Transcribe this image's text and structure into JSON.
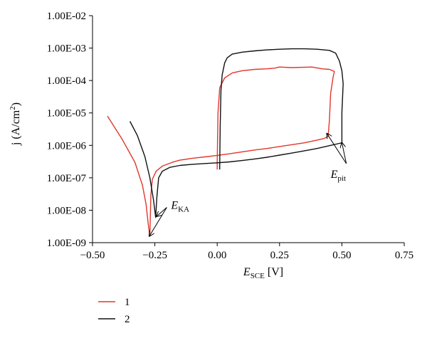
{
  "chart_data": {
    "type": "line",
    "title": "",
    "xlabel": {
      "main": "E",
      "sub": "SCE",
      "unit": " [V]"
    },
    "ylabel": {
      "text": "j (A/cm",
      "sup": "2",
      "close": ")"
    },
    "x_ticks": [
      -0.5,
      -0.25,
      0,
      0.25,
      0.5,
      0.75
    ],
    "x_tick_labels": [
      "−0.50",
      "−0.25",
      "0.00",
      "0.25",
      "0.50",
      "0.75"
    ],
    "xlim": [
      -0.5,
      0.75
    ],
    "y_scale": "log",
    "ylim": [
      1e-09,
      0.01
    ],
    "y_ticks": [
      1e-09,
      1e-08,
      1e-07,
      1e-06,
      1e-05,
      0.0001,
      0.001,
      0.01
    ],
    "y_tick_labels": [
      "1.00E-09",
      "1.00E-08",
      "1.00E-07",
      "1.00E-06",
      "1.00E-05",
      "1.00E-04",
      "1.00E-03",
      "1.00E-02"
    ],
    "grid": false,
    "legend_position": "bottom-left",
    "series": [
      {
        "name": "1",
        "color": "#e0372b",
        "points": [
          [
            -0.44,
            8e-06
          ],
          [
            -0.38,
            1.5e-06
          ],
          [
            -0.33,
            3e-07
          ],
          [
            -0.3,
            6e-08
          ],
          [
            -0.285,
            1.5e-08
          ],
          [
            -0.275,
            3e-09
          ],
          [
            -0.27,
            1.7e-09
          ],
          [
            -0.266,
            3e-08
          ],
          [
            -0.26,
            9e-08
          ],
          [
            -0.245,
            1.6e-07
          ],
          [
            -0.22,
            2.3e-07
          ],
          [
            -0.18,
            3e-07
          ],
          [
            -0.15,
            3.5e-07
          ],
          [
            -0.1,
            4e-07
          ],
          [
            -0.05,
            4.4e-07
          ],
          [
            0.0,
            4.9e-07
          ],
          [
            0.05,
            5.5e-07
          ],
          [
            0.1,
            6.3e-07
          ],
          [
            0.15,
            7.2e-07
          ],
          [
            0.2,
            8e-07
          ],
          [
            0.25,
            9.2e-07
          ],
          [
            0.3,
            1.05e-06
          ],
          [
            0.35,
            1.2e-06
          ],
          [
            0.4,
            1.45e-06
          ],
          [
            0.43,
            1.65e-06
          ],
          [
            0.445,
            1.9e-06
          ],
          [
            0.45,
            6e-06
          ],
          [
            0.455,
            4e-05
          ],
          [
            0.465,
            0.00013
          ],
          [
            0.47,
            0.00019
          ],
          [
            0.45,
            0.00022
          ],
          [
            0.42,
            0.00023
          ],
          [
            0.38,
            0.00026
          ],
          [
            0.3,
            0.00025
          ],
          [
            0.25,
            0.00026
          ],
          [
            0.23,
            0.00024
          ],
          [
            0.2,
            0.00023
          ],
          [
            0.15,
            0.00022
          ],
          [
            0.1,
            0.0002
          ],
          [
            0.06,
            0.00017
          ],
          [
            0.03,
            0.00012
          ],
          [
            0.01,
            6e-05
          ],
          [
            0.003,
            1e-05
          ],
          [
            0.0,
            3e-07
          ],
          [
            0.0,
            1.8e-07
          ]
        ]
      },
      {
        "name": "2",
        "color": "#111111",
        "points": [
          [
            -0.35,
            5.5e-06
          ],
          [
            -0.32,
            2e-06
          ],
          [
            -0.29,
            4.5e-07
          ],
          [
            -0.27,
            1e-07
          ],
          [
            -0.255,
            2e-08
          ],
          [
            -0.247,
            6e-09
          ],
          [
            -0.242,
            2.5e-08
          ],
          [
            -0.235,
            1e-07
          ],
          [
            -0.22,
            1.6e-07
          ],
          [
            -0.19,
            2.1e-07
          ],
          [
            -0.15,
            2.4e-07
          ],
          [
            -0.1,
            2.6e-07
          ],
          [
            -0.05,
            2.75e-07
          ],
          [
            0.0,
            2.9e-07
          ],
          [
            0.05,
            3.1e-07
          ],
          [
            0.1,
            3.4e-07
          ],
          [
            0.15,
            3.8e-07
          ],
          [
            0.2,
            4.3e-07
          ],
          [
            0.25,
            5e-07
          ],
          [
            0.3,
            5.8e-07
          ],
          [
            0.35,
            6.8e-07
          ],
          [
            0.4,
            8e-07
          ],
          [
            0.45,
            9.8e-07
          ],
          [
            0.49,
            1.15e-06
          ],
          [
            0.5,
            1.2e-06
          ],
          [
            0.5,
            1e-05
          ],
          [
            0.505,
            8e-05
          ],
          [
            0.5,
            0.0002
          ],
          [
            0.49,
            0.0004
          ],
          [
            0.475,
            0.0007
          ],
          [
            0.45,
            0.00085
          ],
          [
            0.4,
            0.00092
          ],
          [
            0.35,
            0.00095
          ],
          [
            0.3,
            0.00095
          ],
          [
            0.25,
            0.00092
          ],
          [
            0.2,
            0.00088
          ],
          [
            0.15,
            0.00082
          ],
          [
            0.1,
            0.00075
          ],
          [
            0.06,
            0.00065
          ],
          [
            0.04,
            0.0005
          ],
          [
            0.03,
            0.00035
          ],
          [
            0.02,
            0.00015
          ],
          [
            0.015,
            5e-05
          ],
          [
            0.012,
            4e-06
          ],
          [
            0.01,
            2e-07
          ],
          [
            0.01,
            1.8e-07
          ]
        ]
      }
    ],
    "annotations": [
      {
        "name": "E-KA",
        "main": "E",
        "sub": "KA",
        "label_at": [
          -0.185,
          1.1e-08
        ],
        "arrows_to": [
          [
            -0.272,
            1.6e-09
          ],
          [
            -0.243,
            6.5e-09
          ]
        ]
      },
      {
        "name": "E-pit",
        "main": "E",
        "sub": "pit",
        "label_at": [
          0.455,
          1e-07
        ],
        "arrows_to": [
          [
            0.44,
            2.3e-06
          ],
          [
            0.5,
            1.2e-06
          ]
        ]
      }
    ]
  }
}
